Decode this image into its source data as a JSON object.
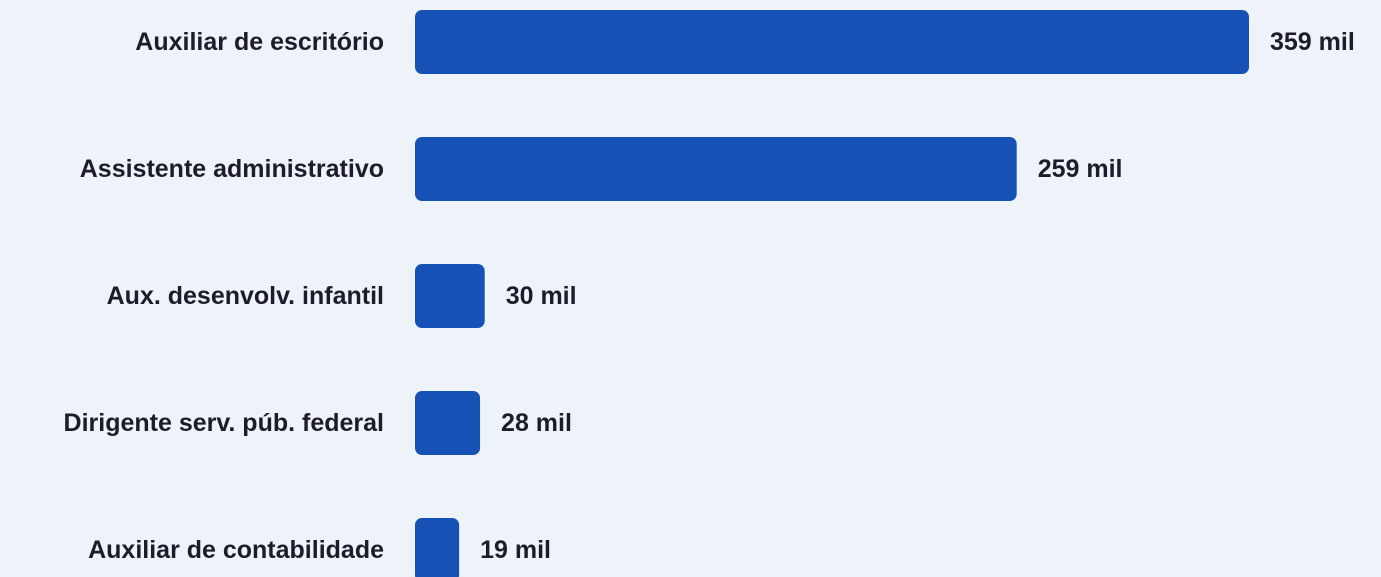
{
  "chart_data": {
    "type": "bar",
    "orientation": "horizontal",
    "categories": [
      "Auxiliar de escritório",
      "Assistente administrativo",
      "Aux. desenvolv. infantil",
      "Dirigente serv. púb. federal",
      "Auxiliar de contabilidade"
    ],
    "values": [
      359,
      259,
      30,
      28,
      19
    ],
    "value_labels": [
      "359 mil",
      "259 mil",
      "30 mil",
      "28 mil",
      "19 mil"
    ],
    "title": "",
    "xlabel": "",
    "ylabel": "",
    "grid": false,
    "legend": false
  },
  "colors": {
    "bar": "#1652b5",
    "background": "#eef3fa",
    "text": "#1c1c2a"
  }
}
